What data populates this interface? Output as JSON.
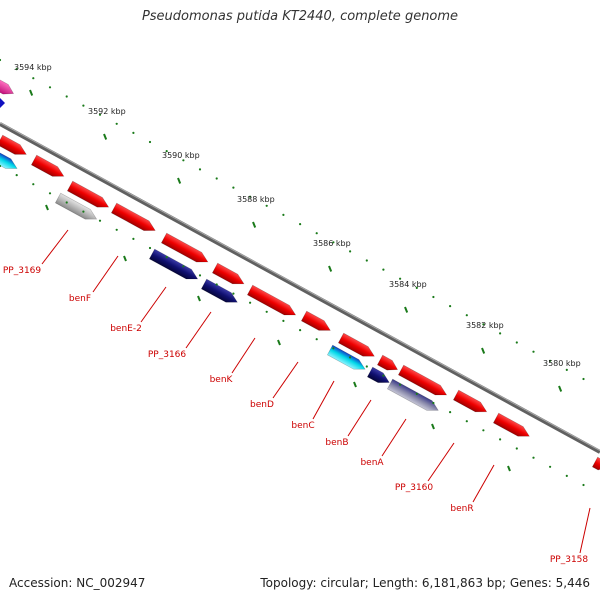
{
  "title": "Pseudomonas putida KT2440, complete genome",
  "footer": {
    "accession": "Accession: NC_002947",
    "topology": "Topology: circular; Length: 6,181,863 bp; Genes: 5,446"
  },
  "ticks": [
    "3594 kbp",
    "3592 kbp",
    "3590 kbp",
    "3588 kbp",
    "3586 kbp",
    "3584 kbp",
    "3582 kbp",
    "3580 kbp"
  ],
  "gene_labels": [
    "PP_3169",
    "benF",
    "benE-2",
    "PP_3166",
    "benK",
    "benD",
    "benC",
    "benB",
    "benA",
    "PP_3160",
    "benR",
    "PP_3158"
  ],
  "colors": {
    "backbone": "#808080",
    "gene_red": "#ee0000",
    "gene_navy": "#101070",
    "gene_cyan": "#00d8e8",
    "gene_gray": "#b8b8b8",
    "gene_magenta": "#e0208a",
    "tick_green": "#1a7a1a",
    "label_red": "#cc0000"
  }
}
